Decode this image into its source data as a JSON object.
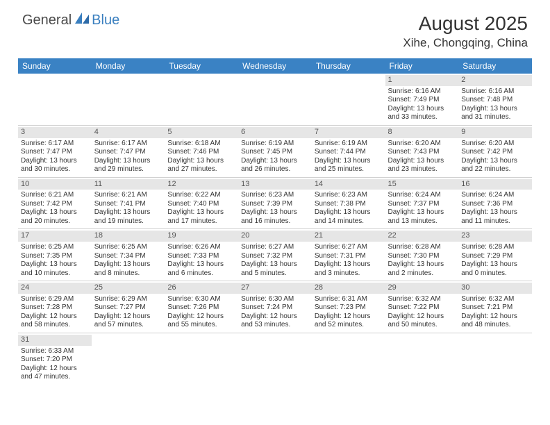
{
  "logo": {
    "general": "General",
    "blue": "Blue"
  },
  "title": "August 2025",
  "location": "Xihe, Chongqing, China",
  "colors": {
    "header_bg": "#3a82c4",
    "header_text": "#ffffff",
    "daynum_bg": "#e6e6e6",
    "border": "#d0d0d0",
    "logo_blue": "#3a7fbf",
    "logo_gray": "#4a4a4a"
  },
  "weekdays": [
    "Sunday",
    "Monday",
    "Tuesday",
    "Wednesday",
    "Thursday",
    "Friday",
    "Saturday"
  ],
  "weeks": [
    [
      null,
      null,
      null,
      null,
      null,
      {
        "day": "1",
        "sunrise": "Sunrise: 6:16 AM",
        "sunset": "Sunset: 7:49 PM",
        "daylight1": "Daylight: 13 hours",
        "daylight2": "and 33 minutes."
      },
      {
        "day": "2",
        "sunrise": "Sunrise: 6:16 AM",
        "sunset": "Sunset: 7:48 PM",
        "daylight1": "Daylight: 13 hours",
        "daylight2": "and 31 minutes."
      }
    ],
    [
      {
        "day": "3",
        "sunrise": "Sunrise: 6:17 AM",
        "sunset": "Sunset: 7:47 PM",
        "daylight1": "Daylight: 13 hours",
        "daylight2": "and 30 minutes."
      },
      {
        "day": "4",
        "sunrise": "Sunrise: 6:17 AM",
        "sunset": "Sunset: 7:47 PM",
        "daylight1": "Daylight: 13 hours",
        "daylight2": "and 29 minutes."
      },
      {
        "day": "5",
        "sunrise": "Sunrise: 6:18 AM",
        "sunset": "Sunset: 7:46 PM",
        "daylight1": "Daylight: 13 hours",
        "daylight2": "and 27 minutes."
      },
      {
        "day": "6",
        "sunrise": "Sunrise: 6:19 AM",
        "sunset": "Sunset: 7:45 PM",
        "daylight1": "Daylight: 13 hours",
        "daylight2": "and 26 minutes."
      },
      {
        "day": "7",
        "sunrise": "Sunrise: 6:19 AM",
        "sunset": "Sunset: 7:44 PM",
        "daylight1": "Daylight: 13 hours",
        "daylight2": "and 25 minutes."
      },
      {
        "day": "8",
        "sunrise": "Sunrise: 6:20 AM",
        "sunset": "Sunset: 7:43 PM",
        "daylight1": "Daylight: 13 hours",
        "daylight2": "and 23 minutes."
      },
      {
        "day": "9",
        "sunrise": "Sunrise: 6:20 AM",
        "sunset": "Sunset: 7:42 PM",
        "daylight1": "Daylight: 13 hours",
        "daylight2": "and 22 minutes."
      }
    ],
    [
      {
        "day": "10",
        "sunrise": "Sunrise: 6:21 AM",
        "sunset": "Sunset: 7:42 PM",
        "daylight1": "Daylight: 13 hours",
        "daylight2": "and 20 minutes."
      },
      {
        "day": "11",
        "sunrise": "Sunrise: 6:21 AM",
        "sunset": "Sunset: 7:41 PM",
        "daylight1": "Daylight: 13 hours",
        "daylight2": "and 19 minutes."
      },
      {
        "day": "12",
        "sunrise": "Sunrise: 6:22 AM",
        "sunset": "Sunset: 7:40 PM",
        "daylight1": "Daylight: 13 hours",
        "daylight2": "and 17 minutes."
      },
      {
        "day": "13",
        "sunrise": "Sunrise: 6:23 AM",
        "sunset": "Sunset: 7:39 PM",
        "daylight1": "Daylight: 13 hours",
        "daylight2": "and 16 minutes."
      },
      {
        "day": "14",
        "sunrise": "Sunrise: 6:23 AM",
        "sunset": "Sunset: 7:38 PM",
        "daylight1": "Daylight: 13 hours",
        "daylight2": "and 14 minutes."
      },
      {
        "day": "15",
        "sunrise": "Sunrise: 6:24 AM",
        "sunset": "Sunset: 7:37 PM",
        "daylight1": "Daylight: 13 hours",
        "daylight2": "and 13 minutes."
      },
      {
        "day": "16",
        "sunrise": "Sunrise: 6:24 AM",
        "sunset": "Sunset: 7:36 PM",
        "daylight1": "Daylight: 13 hours",
        "daylight2": "and 11 minutes."
      }
    ],
    [
      {
        "day": "17",
        "sunrise": "Sunrise: 6:25 AM",
        "sunset": "Sunset: 7:35 PM",
        "daylight1": "Daylight: 13 hours",
        "daylight2": "and 10 minutes."
      },
      {
        "day": "18",
        "sunrise": "Sunrise: 6:25 AM",
        "sunset": "Sunset: 7:34 PM",
        "daylight1": "Daylight: 13 hours",
        "daylight2": "and 8 minutes."
      },
      {
        "day": "19",
        "sunrise": "Sunrise: 6:26 AM",
        "sunset": "Sunset: 7:33 PM",
        "daylight1": "Daylight: 13 hours",
        "daylight2": "and 6 minutes."
      },
      {
        "day": "20",
        "sunrise": "Sunrise: 6:27 AM",
        "sunset": "Sunset: 7:32 PM",
        "daylight1": "Daylight: 13 hours",
        "daylight2": "and 5 minutes."
      },
      {
        "day": "21",
        "sunrise": "Sunrise: 6:27 AM",
        "sunset": "Sunset: 7:31 PM",
        "daylight1": "Daylight: 13 hours",
        "daylight2": "and 3 minutes."
      },
      {
        "day": "22",
        "sunrise": "Sunrise: 6:28 AM",
        "sunset": "Sunset: 7:30 PM",
        "daylight1": "Daylight: 13 hours",
        "daylight2": "and 2 minutes."
      },
      {
        "day": "23",
        "sunrise": "Sunrise: 6:28 AM",
        "sunset": "Sunset: 7:29 PM",
        "daylight1": "Daylight: 13 hours",
        "daylight2": "and 0 minutes."
      }
    ],
    [
      {
        "day": "24",
        "sunrise": "Sunrise: 6:29 AM",
        "sunset": "Sunset: 7:28 PM",
        "daylight1": "Daylight: 12 hours",
        "daylight2": "and 58 minutes."
      },
      {
        "day": "25",
        "sunrise": "Sunrise: 6:29 AM",
        "sunset": "Sunset: 7:27 PM",
        "daylight1": "Daylight: 12 hours",
        "daylight2": "and 57 minutes."
      },
      {
        "day": "26",
        "sunrise": "Sunrise: 6:30 AM",
        "sunset": "Sunset: 7:26 PM",
        "daylight1": "Daylight: 12 hours",
        "daylight2": "and 55 minutes."
      },
      {
        "day": "27",
        "sunrise": "Sunrise: 6:30 AM",
        "sunset": "Sunset: 7:24 PM",
        "daylight1": "Daylight: 12 hours",
        "daylight2": "and 53 minutes."
      },
      {
        "day": "28",
        "sunrise": "Sunrise: 6:31 AM",
        "sunset": "Sunset: 7:23 PM",
        "daylight1": "Daylight: 12 hours",
        "daylight2": "and 52 minutes."
      },
      {
        "day": "29",
        "sunrise": "Sunrise: 6:32 AM",
        "sunset": "Sunset: 7:22 PM",
        "daylight1": "Daylight: 12 hours",
        "daylight2": "and 50 minutes."
      },
      {
        "day": "30",
        "sunrise": "Sunrise: 6:32 AM",
        "sunset": "Sunset: 7:21 PM",
        "daylight1": "Daylight: 12 hours",
        "daylight2": "and 48 minutes."
      }
    ],
    [
      {
        "day": "31",
        "sunrise": "Sunrise: 6:33 AM",
        "sunset": "Sunset: 7:20 PM",
        "daylight1": "Daylight: 12 hours",
        "daylight2": "and 47 minutes."
      },
      null,
      null,
      null,
      null,
      null,
      null
    ]
  ]
}
